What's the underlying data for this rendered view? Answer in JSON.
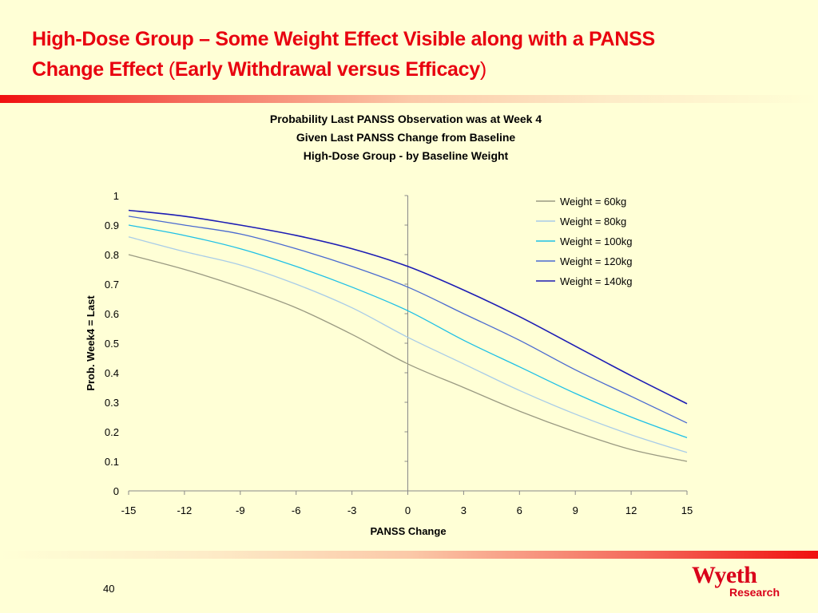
{
  "slide": {
    "title_line1": "High-Dose Group – Some Weight Effect Visible along with a PANSS",
    "title_line2_main": "Change Effect ",
    "title_paren_open": "(",
    "title_paren_text": "Early Withdrawal versus Efficacy",
    "title_paren_close": ")",
    "page_number": "40",
    "logo_brand": "Wyeth",
    "logo_sub": "Research",
    "accent_color": "#e8000f"
  },
  "chart_data": {
    "type": "line",
    "title": [
      "Probability Last PANSS Observation was at Week 4",
      "Given Last PANSS Change from Baseline",
      "High-Dose Group - by Baseline Weight"
    ],
    "xlabel": "PANSS Change",
    "ylabel": "Prob. Week4 = Last",
    "x": [
      -15,
      -12,
      -9,
      -6,
      -3,
      0,
      3,
      6,
      9,
      12,
      15
    ],
    "xticks": [
      "-15",
      "-12",
      "-9",
      "-6",
      "-3",
      "0",
      "3",
      "6",
      "9",
      "12",
      "15"
    ],
    "yticks": [
      "0",
      "0.1",
      "0.2",
      "0.3",
      "0.4",
      "0.5",
      "0.6",
      "0.7",
      "0.8",
      "0.9",
      "1"
    ],
    "xlim": [
      -15,
      15
    ],
    "ylim": [
      0,
      1
    ],
    "grid": false,
    "legend_position": "top-right",
    "series": [
      {
        "name": "Weight = 60kg",
        "color": "#9a9a82",
        "values": [
          0.8,
          0.75,
          0.69,
          0.62,
          0.53,
          0.43,
          0.35,
          0.27,
          0.2,
          0.14,
          0.1
        ]
      },
      {
        "name": "Weight = 80kg",
        "color": "#a8cce8",
        "values": [
          0.86,
          0.81,
          0.765,
          0.7,
          0.62,
          0.52,
          0.43,
          0.34,
          0.26,
          0.19,
          0.13
        ]
      },
      {
        "name": "Weight = 100kg",
        "color": "#1ec0e6",
        "values": [
          0.9,
          0.865,
          0.82,
          0.76,
          0.69,
          0.61,
          0.51,
          0.42,
          0.33,
          0.25,
          0.18
        ]
      },
      {
        "name": "Weight = 120kg",
        "color": "#4a6ad0",
        "values": [
          0.93,
          0.9,
          0.87,
          0.82,
          0.76,
          0.69,
          0.6,
          0.51,
          0.41,
          0.32,
          0.23
        ]
      },
      {
        "name": "Weight = 140kg",
        "color": "#1c1cb4",
        "values": [
          0.95,
          0.93,
          0.9,
          0.865,
          0.82,
          0.76,
          0.68,
          0.59,
          0.49,
          0.39,
          0.295
        ]
      }
    ]
  }
}
